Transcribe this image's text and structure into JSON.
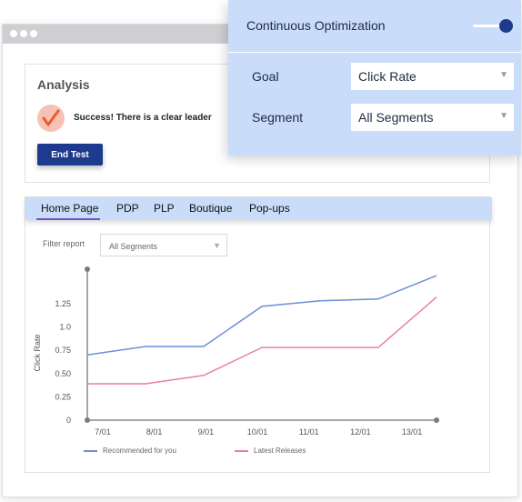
{
  "analysis": {
    "title": "Analysis",
    "success_message": "Success! There is a clear leader",
    "end_test_label": "End Test"
  },
  "optimization": {
    "title": "Continuous Optimization",
    "toggle_on": true,
    "goal_label": "Goal",
    "goal_value": "Click Rate",
    "segment_label": "Segment",
    "segment_value": "All Segments"
  },
  "tabs": [
    "Home Page",
    "PDP",
    "PLP",
    "Boutique",
    "Pop-ups"
  ],
  "active_tab": "Home Page",
  "filter": {
    "label": "Filter report",
    "value": "All Segments"
  },
  "colors": {
    "accent": "#1e3a8f",
    "panel": "#c9dcf9",
    "series_1": "#6b8fd6",
    "series_2": "#ea7fa3"
  },
  "chart_data": {
    "type": "line",
    "ylabel": "Click Rate",
    "y_ticks": [
      "1.25",
      "1.0",
      "0.75",
      "0.50",
      "0.25",
      "0"
    ],
    "y_tick_values": [
      1.25,
      1.0,
      0.75,
      0.5,
      0.25,
      0
    ],
    "ylim": [
      0,
      1.6
    ],
    "categories": [
      "7/01",
      "8/01",
      "9/01",
      "10/01",
      "11/01",
      "12/01",
      "13/01"
    ],
    "series": [
      {
        "name": "Recommended for you",
        "color": "#6b8fd6",
        "values": [
          0.7,
          0.79,
          0.79,
          1.22,
          1.28,
          1.3,
          1.55
        ]
      },
      {
        "name": "Latest Releases",
        "color": "#ea7fa3",
        "values": [
          0.39,
          0.39,
          0.48,
          0.78,
          0.78,
          0.78,
          1.32
        ]
      }
    ],
    "grid": false,
    "legend_position": "bottom"
  }
}
